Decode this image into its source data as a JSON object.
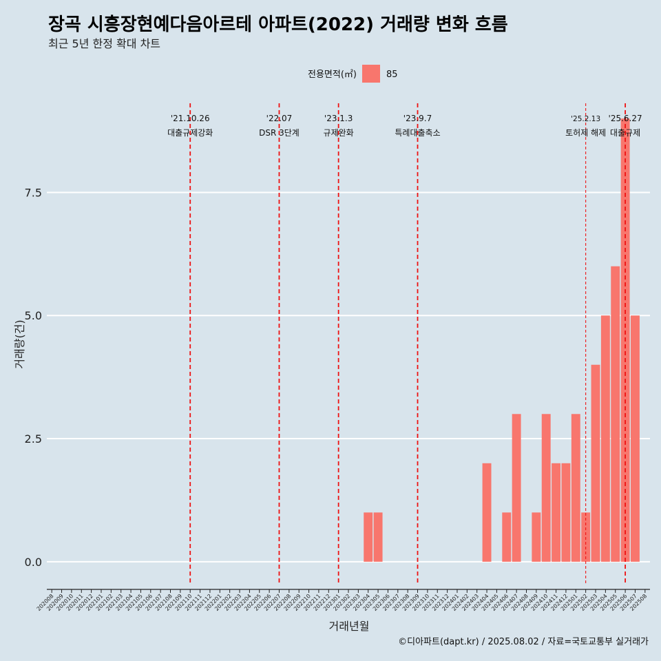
{
  "chart_data": {
    "type": "bar",
    "title": "장곡 시흥장현예다음아르테 아파트(2022) 거래량 변화 흐름",
    "subtitle": "최근 5년 한정 확대 차트",
    "xlabel": "거래년월",
    "ylabel": "거래량(건)",
    "caption": "©디아파트(dapt.kr) / 2025.08.02 / 자료=국토교통부 실거래가",
    "legend": {
      "title": "전용면적(㎡)",
      "position": "top-center",
      "items": [
        {
          "label": "85",
          "color": "#f8766d"
        }
      ]
    },
    "ylim": [
      -0.45,
      9.45
    ],
    "yticks": [
      0.0,
      2.5,
      5.0,
      7.5
    ],
    "ytick_labels": [
      "0.0",
      "2.5",
      "5.0",
      "7.5"
    ],
    "grid": true,
    "bar_color": "#f8766d",
    "categories": [
      "202008",
      "202009",
      "202010",
      "202011",
      "202012",
      "202101",
      "202102",
      "202103",
      "202104",
      "202105",
      "202106",
      "202107",
      "202108",
      "202109",
      "202110",
      "202111",
      "202112",
      "202201",
      "202202",
      "202203",
      "202204",
      "202205",
      "202206",
      "202207",
      "202208",
      "202209",
      "202210",
      "202211",
      "202212",
      "202301",
      "202302",
      "202303",
      "202304",
      "202305",
      "202306",
      "202307",
      "202308",
      "202309",
      "202310",
      "202311",
      "202312",
      "202401",
      "202402",
      "202403",
      "202404",
      "202405",
      "202406",
      "202407",
      "202408",
      "202409",
      "202410",
      "202411",
      "202412",
      "202501",
      "202502",
      "202503",
      "202504",
      "202505",
      "202506",
      "202507",
      "202508"
    ],
    "series": [
      {
        "values": [
          0,
          0,
          0,
          0,
          0,
          0,
          0,
          0,
          0,
          0,
          0,
          0,
          0,
          0,
          0,
          0,
          0,
          0,
          0,
          0,
          0,
          0,
          0,
          0,
          0,
          0,
          0,
          0,
          0,
          0,
          0,
          0,
          1,
          1,
          0,
          0,
          0,
          0,
          0,
          0,
          0,
          0,
          0,
          0,
          2,
          0,
          1,
          3,
          0,
          1,
          3,
          2,
          2,
          3,
          1,
          4,
          5,
          6,
          9,
          5,
          0
        ]
      }
    ],
    "events": [
      {
        "x": "202110",
        "date": "'21.10.26",
        "label": "대출규제강화",
        "style": "thick"
      },
      {
        "x": "202207",
        "date": "'22.07",
        "label": "DSR 3단계",
        "style": "thick"
      },
      {
        "x": "202301",
        "date": "'23.1.3",
        "label": "규제완화",
        "style": "thick"
      },
      {
        "x": "202309",
        "date": "'23.9.7",
        "label": "특례대출축소",
        "style": "thick"
      },
      {
        "x": "202502",
        "date": "'25.2.13",
        "label": "토허제 해제",
        "style": "thin"
      },
      {
        "x": "202506",
        "date": "'25.6.27",
        "label": "대출규제",
        "style": "thick"
      }
    ]
  }
}
